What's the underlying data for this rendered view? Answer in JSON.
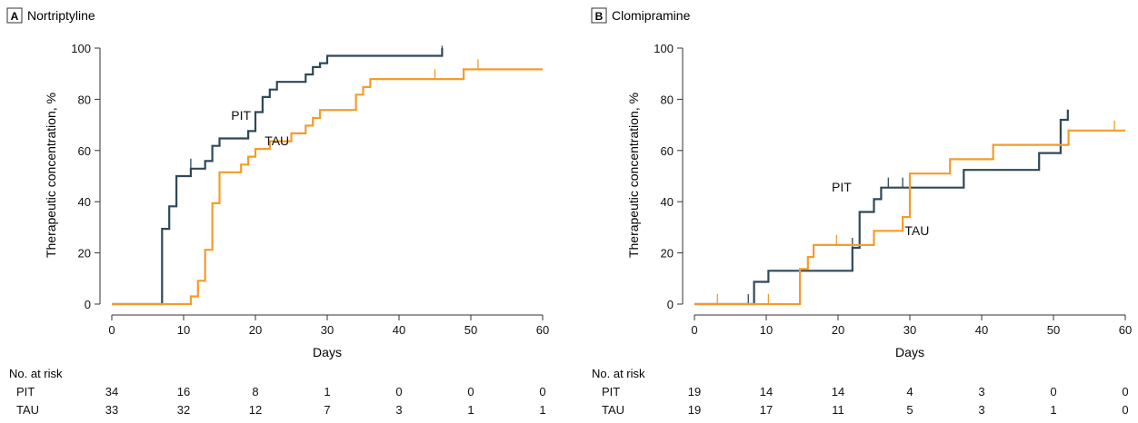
{
  "colors": {
    "pit": "#2f4858",
    "tau": "#f39c2b",
    "axis": "#333333",
    "text": "#111111"
  },
  "risk_table_label": "No. at risk",
  "chart_data": [
    {
      "type": "line",
      "step": true,
      "panel_letter": "A",
      "title": "Nortriptyline",
      "xlabel": "Days",
      "ylabel": "Therapeutic concentration, %",
      "xlim": [
        0,
        60
      ],
      "ylim": [
        0,
        100
      ],
      "xticks": [
        0,
        10,
        20,
        30,
        40,
        50,
        60
      ],
      "yticks": [
        0,
        20,
        40,
        60,
        80,
        100
      ],
      "grid": false,
      "series": [
        {
          "name": "PIT",
          "color_key": "pit",
          "points": [
            [
              0,
              0
            ],
            [
              7,
              0
            ],
            [
              7,
              29.4
            ],
            [
              8,
              29.4
            ],
            [
              8,
              38.2
            ],
            [
              9,
              38.2
            ],
            [
              9,
              50
            ],
            [
              11,
              50
            ],
            [
              11,
              52.9
            ],
            [
              13,
              52.9
            ],
            [
              13,
              55.9
            ],
            [
              14,
              55.9
            ],
            [
              14,
              61.8
            ],
            [
              15,
              61.8
            ],
            [
              15,
              64.7
            ],
            [
              19,
              64.7
            ],
            [
              19,
              67.6
            ],
            [
              20,
              67.6
            ],
            [
              20,
              75
            ],
            [
              21,
              75
            ],
            [
              21,
              80.9
            ],
            [
              22,
              80.9
            ],
            [
              22,
              83.8
            ],
            [
              23,
              83.8
            ],
            [
              23,
              86.8
            ],
            [
              27,
              86.8
            ],
            [
              27,
              89.7
            ],
            [
              28,
              89.7
            ],
            [
              28,
              92.6
            ],
            [
              29,
              92.6
            ],
            [
              29,
              94.1
            ],
            [
              30,
              94.1
            ],
            [
              30,
              97
            ],
            [
              46,
              97
            ],
            [
              46,
              100
            ]
          ],
          "censor": [
            [
              11,
              52.9
            ],
            [
              46,
              97
            ]
          ],
          "label_at": [
            18,
            72
          ]
        },
        {
          "name": "TAU",
          "color_key": "tau",
          "points": [
            [
              0,
              0
            ],
            [
              11,
              0
            ],
            [
              11,
              3
            ],
            [
              12,
              3
            ],
            [
              12,
              9.1
            ],
            [
              13,
              9.1
            ],
            [
              13,
              21.2
            ],
            [
              14,
              21.2
            ],
            [
              14,
              39.4
            ],
            [
              15,
              39.4
            ],
            [
              15,
              51.5
            ],
            [
              18,
              51.5
            ],
            [
              18,
              54.5
            ],
            [
              19,
              54.5
            ],
            [
              19,
              57.6
            ],
            [
              20,
              57.6
            ],
            [
              20,
              60.6
            ],
            [
              22,
              60.6
            ],
            [
              22,
              63.6
            ],
            [
              25,
              63.6
            ],
            [
              25,
              66.7
            ],
            [
              27,
              66.7
            ],
            [
              27,
              69.7
            ],
            [
              28,
              69.7
            ],
            [
              28,
              72.7
            ],
            [
              29,
              72.7
            ],
            [
              29,
              75.8
            ],
            [
              34,
              75.8
            ],
            [
              34,
              81.8
            ],
            [
              35,
              81.8
            ],
            [
              35,
              84.8
            ],
            [
              36,
              84.8
            ],
            [
              36,
              87.9
            ],
            [
              49,
              87.9
            ],
            [
              49,
              91.7
            ],
            [
              60,
              91.7
            ]
          ],
          "censor": [
            [
              45,
              87.9
            ],
            [
              51,
              91.7
            ]
          ],
          "label_at": [
            23,
            62
          ]
        }
      ],
      "risk_table": {
        "times": [
          0,
          10,
          20,
          30,
          40,
          50,
          60
        ],
        "rows": [
          {
            "name": "PIT",
            "values": [
              34,
              16,
              8,
              1,
              0,
              0,
              0
            ]
          },
          {
            "name": "TAU",
            "values": [
              33,
              32,
              12,
              7,
              3,
              1,
              1
            ]
          }
        ]
      }
    },
    {
      "type": "line",
      "step": true,
      "panel_letter": "B",
      "title": "Clomipramine",
      "xlabel": "Days",
      "ylabel": "Therapeutic concentration, %",
      "xlim": [
        0,
        60
      ],
      "ylim": [
        0,
        100
      ],
      "xticks": [
        0,
        10,
        20,
        30,
        40,
        50,
        60
      ],
      "yticks": [
        0,
        20,
        40,
        60,
        80,
        100
      ],
      "grid": false,
      "series": [
        {
          "name": "PIT",
          "color_key": "pit",
          "points": [
            [
              0,
              0
            ],
            [
              8.3,
              0
            ],
            [
              8.3,
              8.7
            ],
            [
              10.3,
              8.7
            ],
            [
              10.3,
              13
            ],
            [
              22,
              13
            ],
            [
              22,
              22
            ],
            [
              23,
              22
            ],
            [
              23,
              36
            ],
            [
              25,
              36
            ],
            [
              25,
              41
            ],
            [
              26,
              41
            ],
            [
              26,
              45.5
            ],
            [
              37.5,
              45.5
            ],
            [
              37.5,
              52.4
            ],
            [
              48,
              52.4
            ],
            [
              48,
              59
            ],
            [
              51,
              59
            ],
            [
              51,
              72
            ],
            [
              52,
              72
            ],
            [
              52,
              76
            ]
          ],
          "censor": [
            [
              7.5,
              0
            ],
            [
              22,
              22
            ],
            [
              27,
              45.5
            ],
            [
              29,
              45.5
            ]
          ],
          "label_at": [
            20.5,
            44
          ]
        },
        {
          "name": "TAU",
          "color_key": "tau",
          "points": [
            [
              0,
              0
            ],
            [
              14.7,
              0
            ],
            [
              14.7,
              13.7
            ],
            [
              15.8,
              13.7
            ],
            [
              15.8,
              18.4
            ],
            [
              16.6,
              18.4
            ],
            [
              16.6,
              23.1
            ],
            [
              25,
              23.1
            ],
            [
              25,
              28.6
            ],
            [
              29,
              28.6
            ],
            [
              29,
              34
            ],
            [
              30,
              34
            ],
            [
              30,
              51
            ],
            [
              35.6,
              51
            ],
            [
              35.6,
              56.6
            ],
            [
              41.6,
              56.6
            ],
            [
              41.6,
              62.2
            ],
            [
              52.1,
              62.2
            ],
            [
              52.1,
              67.8
            ],
            [
              60,
              67.8
            ]
          ],
          "censor": [
            [
              3.2,
              0
            ],
            [
              10.3,
              0
            ],
            [
              19.8,
              23.1
            ],
            [
              58.5,
              67.8
            ]
          ],
          "label_at": [
            31,
            27
          ]
        }
      ],
      "risk_table": {
        "times": [
          0,
          10,
          20,
          30,
          40,
          50,
          60
        ],
        "rows": [
          {
            "name": "PIT",
            "values": [
              19,
              14,
              14,
              4,
              3,
              0,
              0
            ]
          },
          {
            "name": "TAU",
            "values": [
              19,
              17,
              11,
              5,
              3,
              1,
              0
            ]
          }
        ]
      }
    }
  ]
}
